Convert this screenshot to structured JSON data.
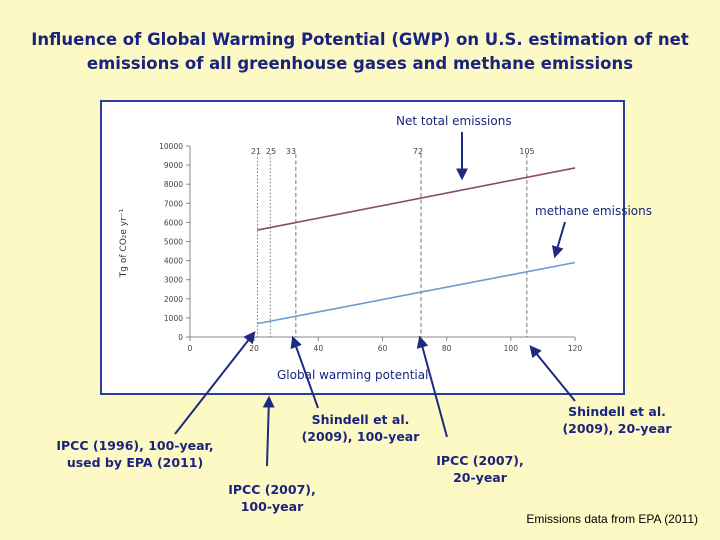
{
  "title_line1": "Influence of Global Warming Potential (GWP) on U.S. estimation of net",
  "title_line2": "emissions of all greenhouse gases and methane emissions",
  "source": "Emissions data from EPA (2011)",
  "chart_data": {
    "type": "line",
    "xlabel": "Global warming potential",
    "ylabel": "Tg of CO₂e yr⁻¹",
    "xlim": [
      0,
      120
    ],
    "ylim": [
      0,
      10000
    ],
    "x_ticks": [
      0,
      20,
      40,
      60,
      80,
      100,
      120
    ],
    "y_ticks": [
      0,
      1000,
      2000,
      3000,
      4000,
      5000,
      6000,
      7000,
      8000,
      9000,
      10000
    ],
    "grid": false,
    "series": [
      {
        "name": "Net total emissions",
        "color": "#8b4a6e",
        "x": [
          21,
          120
        ],
        "y": [
          5600,
          8850
        ]
      },
      {
        "name": "methane emissions",
        "color": "#6a9bd0",
        "x": [
          21,
          120
        ],
        "y": [
          700,
          3900
        ]
      }
    ],
    "reference_lines": [
      {
        "x": 21,
        "label": "21",
        "style": "dotted"
      },
      {
        "x": 25,
        "label": "25",
        "style": "dotted"
      },
      {
        "x": 33,
        "label": "33",
        "style": "dashed"
      },
      {
        "x": 72,
        "label": "72",
        "style": "dashed"
      },
      {
        "x": 105,
        "label": "105",
        "style": "dashed"
      }
    ]
  },
  "annotations": {
    "ipcc1996": "IPCC (1996), 100-year, used by EPA (2011)",
    "ipcc2007_100": "IPCC (2007), 100-year",
    "shindell_100": "Shindell et al. (2009), 100-year",
    "ipcc2007_20": "IPCC (2007), 20-year",
    "shindell_20": "Shindell et al. (2009), 20-year"
  }
}
